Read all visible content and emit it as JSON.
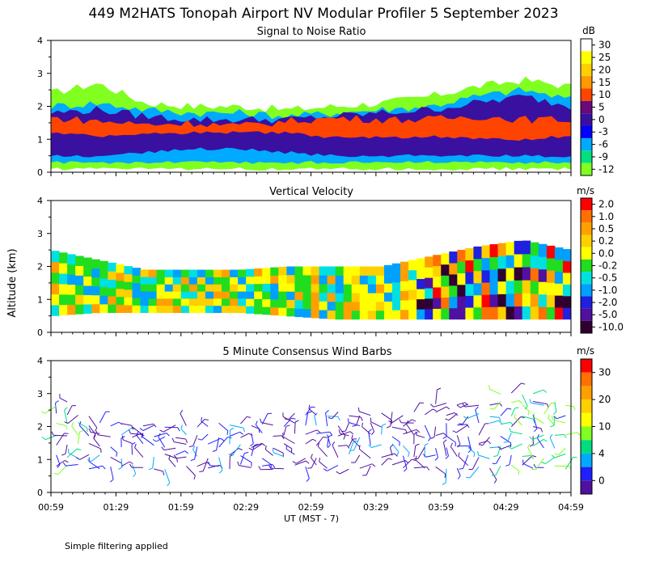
{
  "title": "449 M2HATS Tonopah Airport NV Modular Profiler  5 September 2023",
  "ylabel": "Altitude (km)",
  "xlabel": "UT  (MST - 7)",
  "footnote": "Simple filtering applied",
  "time_ticks": [
    "00:59",
    "01:29",
    "01:59",
    "02:29",
    "02:59",
    "03:29",
    "03:59",
    "04:29",
    "04:59"
  ],
  "altitude_ticks": [
    "0",
    "1",
    "2",
    "3",
    "4"
  ],
  "chart_data": [
    {
      "type": "heatmap",
      "title": "Signal to Noise Ratio",
      "unit": "dB",
      "x_range": [
        "00:59",
        "04:59"
      ],
      "ylim": [
        0,
        4
      ],
      "colorbar": {
        "labels": [
          "30",
          "25",
          "20",
          "15",
          "10",
          "5",
          "0",
          "-3",
          "-6",
          "-9",
          "-12"
        ],
        "colors": [
          "#ffffff",
          "#ffff00",
          "#ffd000",
          "#ff9900",
          "#ff4400",
          "#6a0a7a",
          "#3a10a0",
          "#0000ff",
          "#00aaff",
          "#00e080",
          "#80ff20"
        ]
      },
      "layers": [
        {
          "name": "outer",
          "top_km": [
            2.4,
            2.7,
            2.1,
            2.0,
            2.0,
            1.9,
            2.0,
            2.1,
            2.3,
            2.6,
            2.8,
            2.6
          ],
          "bottom_km": [
            0.1,
            0.1,
            0.1,
            0.1,
            0.1,
            0.1,
            0.1,
            0.1,
            0.1,
            0.1,
            0.1,
            0.1
          ],
          "color": "#80ff20"
        },
        {
          "name": "mid",
          "top_km": [
            2.0,
            2.1,
            1.9,
            1.8,
            1.8,
            1.7,
            1.8,
            1.9,
            2.0,
            2.3,
            2.5,
            2.2
          ],
          "bottom_km": [
            0.3,
            0.3,
            0.3,
            0.3,
            0.3,
            0.3,
            0.3,
            0.3,
            0.3,
            0.3,
            0.3,
            0.3
          ],
          "color": "#00aaff"
        },
        {
          "name": "core",
          "top_km": [
            1.8,
            1.9,
            1.7,
            1.6,
            1.6,
            1.6,
            1.7,
            1.8,
            1.9,
            2.1,
            2.3,
            2.0
          ],
          "bottom_km": [
            0.5,
            0.5,
            0.6,
            0.7,
            0.7,
            0.6,
            0.5,
            0.5,
            0.5,
            0.5,
            0.5,
            0.5
          ],
          "color": "#3a10a0"
        },
        {
          "name": "hot",
          "top_km": [
            1.65,
            1.55,
            1.45,
            1.5,
            1.4,
            1.55,
            1.65,
            1.6,
            1.6,
            1.7,
            1.6,
            1.6
          ],
          "bottom_km": [
            1.2,
            1.1,
            1.15,
            1.2,
            1.2,
            1.2,
            1.05,
            1.05,
            1.1,
            1.0,
            1.0,
            1.1
          ],
          "color": "#ff4400"
        }
      ]
    },
    {
      "type": "heatmap",
      "title": "Vertical Velocity",
      "unit": "m/s",
      "x_range": [
        "00:59",
        "04:59"
      ],
      "ylim": [
        0,
        4
      ],
      "colorbar": {
        "labels": [
          "2.0",
          "1.0",
          "0.5",
          "0.2",
          "0.0",
          "-0.2",
          "-0.5",
          "-1.0",
          "-2.0",
          "-5.0",
          "-10.0"
        ],
        "colors": [
          "#ff0000",
          "#ff7000",
          "#ffa000",
          "#ffd000",
          "#ffff00",
          "#20dd20",
          "#00e0e0",
          "#00a0ff",
          "#2020e0",
          "#5010a0",
          "#300030"
        ]
      },
      "data_top_km": [
        2.5,
        2.2,
        1.9,
        1.9,
        1.9,
        2.0,
        2.0,
        2.0,
        2.3,
        2.6,
        2.8,
        2.5
      ],
      "data_bottom_km": [
        0.5,
        0.6,
        0.6,
        0.6,
        0.6,
        0.5,
        0.4,
        0.4,
        0.4,
        0.4,
        0.4,
        0.4
      ]
    },
    {
      "type": "scatter",
      "title": "5 Minute Consensus Wind Barbs",
      "unit": "m/s",
      "x_range": [
        "00:59",
        "04:59"
      ],
      "ylim": [
        0,
        4
      ],
      "colorbar": {
        "labels": [
          "30",
          "20",
          "10",
          "4",
          "0"
        ],
        "colors": [
          "#ff0000",
          "#ff7000",
          "#ffa000",
          "#ffd000",
          "#ffff00",
          "#80ff20",
          "#00dd80",
          "#00aaff",
          "#2020ff",
          "#5010a0"
        ]
      },
      "barb_top_km": [
        3.0,
        2.3,
        2.2,
        2.2,
        2.2,
        2.3,
        2.4,
        2.5,
        2.6,
        2.8,
        3.1,
        2.7
      ],
      "barb_bottom_km": [
        0.7,
        0.7,
        0.7,
        0.7,
        0.7,
        0.7,
        0.7,
        0.7,
        0.7,
        0.7,
        0.7,
        0.7
      ]
    }
  ]
}
